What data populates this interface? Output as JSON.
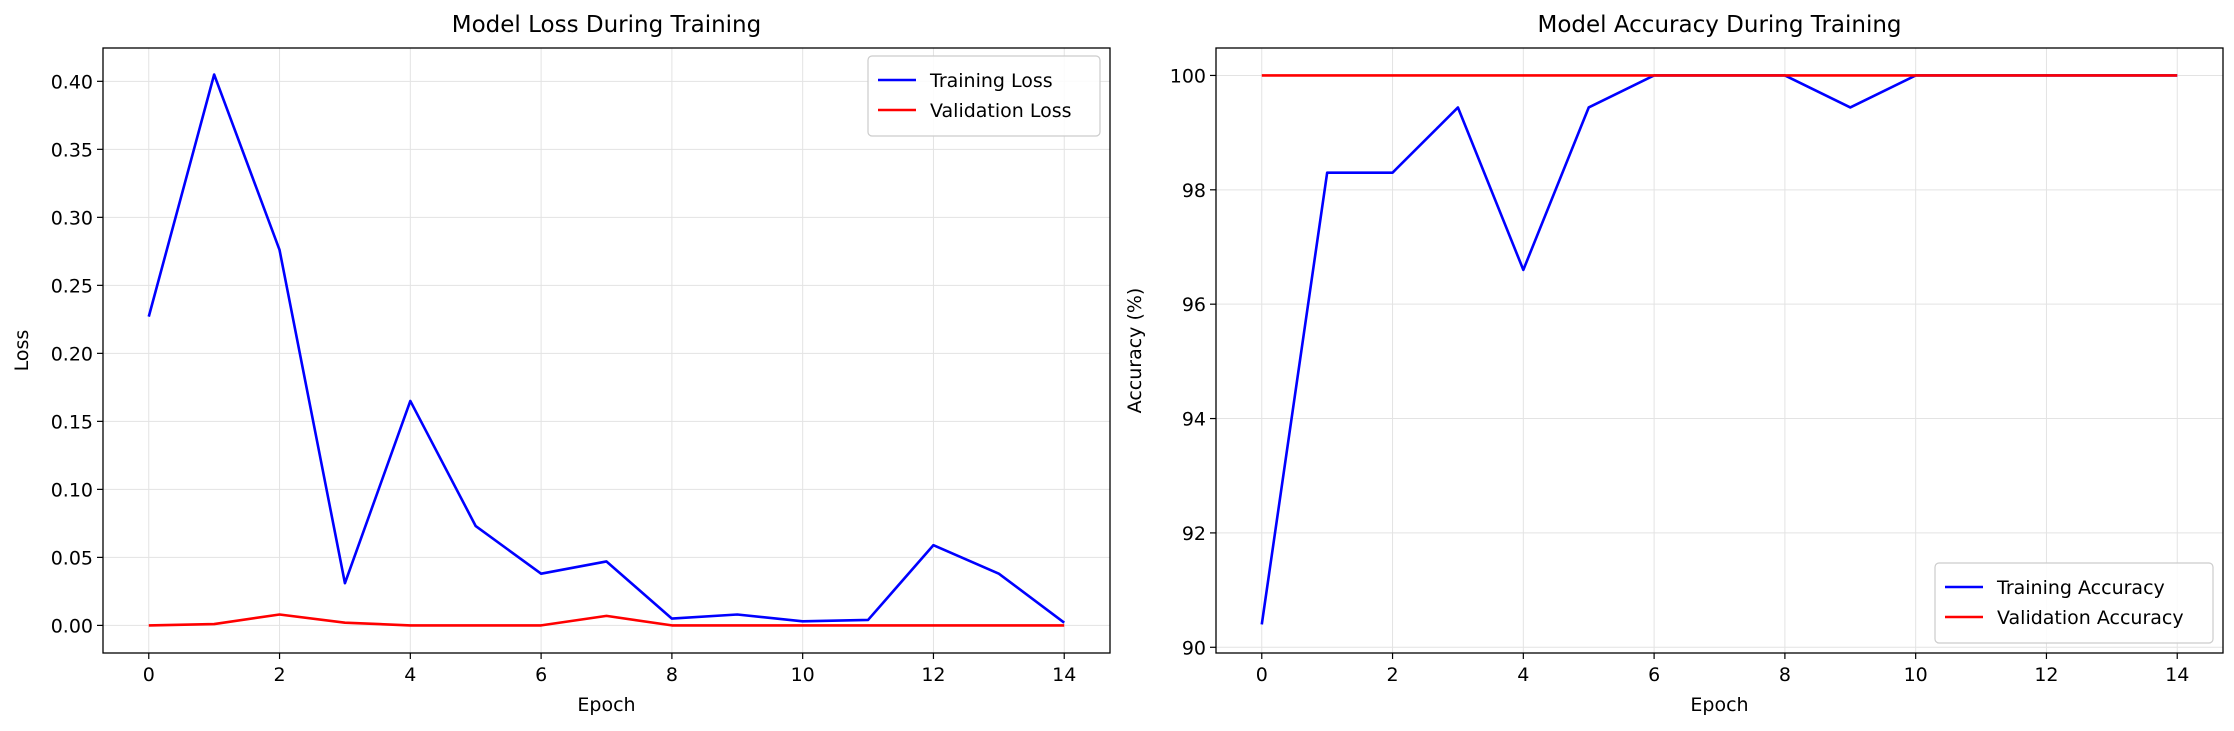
{
  "chart_data": [
    {
      "type": "line",
      "title": "Model Loss During Training",
      "xlabel": "Epoch",
      "ylabel": "Loss",
      "xlim": [
        -0.7,
        14.7
      ],
      "ylim": [
        -0.0203,
        0.4245
      ],
      "xticks": [
        0,
        2,
        4,
        6,
        8,
        10,
        12,
        14
      ],
      "xtick_labels": [
        "0",
        "2",
        "4",
        "6",
        "8",
        "10",
        "12",
        "14"
      ],
      "yticks": [
        0.0,
        0.05,
        0.1,
        0.15,
        0.2,
        0.25,
        0.3,
        0.35,
        0.4
      ],
      "ytick_labels": [
        "0.00",
        "0.05",
        "0.10",
        "0.15",
        "0.20",
        "0.25",
        "0.30",
        "0.35",
        "0.40"
      ],
      "grid": true,
      "legend_position": "top-right",
      "x": [
        0,
        1,
        2,
        3,
        4,
        5,
        6,
        7,
        8,
        9,
        10,
        11,
        12,
        13,
        14
      ],
      "series": [
        {
          "name": "Training Loss",
          "color": "#0000ff",
          "values": [
            0.227,
            0.405,
            0.276,
            0.031,
            0.165,
            0.073,
            0.038,
            0.047,
            0.005,
            0.008,
            0.003,
            0.004,
            0.059,
            0.038,
            0.002
          ]
        },
        {
          "name": "Validation Loss",
          "color": "#ff0000",
          "values": [
            0.0,
            0.001,
            0.008,
            0.002,
            0.0,
            0.0,
            0.0,
            0.007,
            0.0,
            0.0,
            0.0,
            0.0,
            0.0,
            0.0,
            0.0
          ]
        }
      ]
    },
    {
      "type": "line",
      "title": "Model Accuracy During Training",
      "xlabel": "Epoch",
      "ylabel": "Accuracy (%)",
      "xlim": [
        -0.7,
        14.7
      ],
      "ylim": [
        89.9,
        100.48
      ],
      "xticks": [
        0,
        2,
        4,
        6,
        8,
        10,
        12,
        14
      ],
      "xtick_labels": [
        "0",
        "2",
        "4",
        "6",
        "8",
        "10",
        "12",
        "14"
      ],
      "yticks": [
        90,
        92,
        94,
        96,
        98,
        100
      ],
      "ytick_labels": [
        "90",
        "92",
        "94",
        "96",
        "98",
        "100"
      ],
      "grid": true,
      "legend_position": "bottom-right",
      "x": [
        0,
        1,
        2,
        3,
        4,
        5,
        6,
        7,
        8,
        9,
        10,
        11,
        12,
        13,
        14
      ],
      "series": [
        {
          "name": "Training Accuracy",
          "color": "#0000ff",
          "values": [
            90.4,
            98.3,
            98.3,
            99.44,
            96.6,
            99.44,
            100.0,
            100.0,
            100.0,
            99.44,
            100.0,
            100.0,
            100.0,
            100.0,
            100.0
          ]
        },
        {
          "name": "Validation Accuracy",
          "color": "#ff0000",
          "values": [
            100.0,
            100.0,
            100.0,
            100.0,
            100.0,
            100.0,
            100.0,
            100.0,
            100.0,
            100.0,
            100.0,
            100.0,
            100.0,
            100.0,
            100.0
          ]
        }
      ]
    }
  ]
}
